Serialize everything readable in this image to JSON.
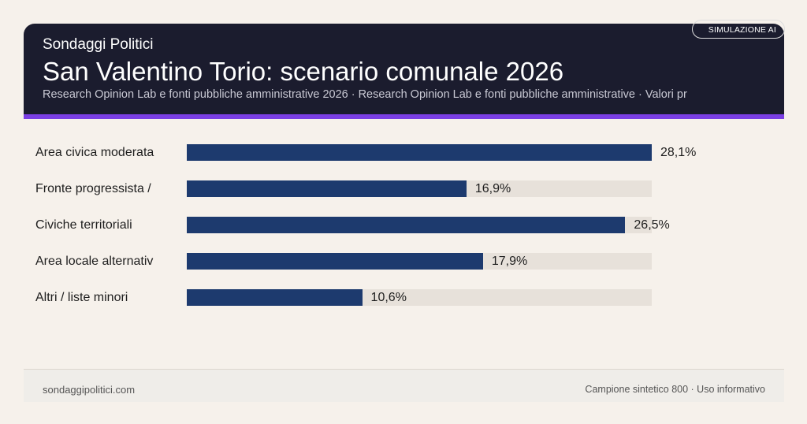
{
  "header": {
    "kicker": "Sondaggi Politici",
    "title": "San Valentino Torio: scenario comunale 2026",
    "subtitle": "Research Opinion Lab e fonti pubbliche amministrative 2026 · Research Opinion Lab e fonti pubbliche amministrative · Valori pr",
    "badge": "SIMULAZIONE AI"
  },
  "colors": {
    "bar": "#1d3a6e",
    "track": "#e7e1da",
    "accent": "#7b3fe4",
    "header_bg": "#1b1c2e"
  },
  "chart_data": {
    "type": "bar",
    "orientation": "horizontal",
    "categories": [
      "Area civica moderata",
      "Fronte progressista /",
      "Civiche territoriali",
      "Area locale alternativ",
      "Altri / liste minori"
    ],
    "values": [
      28.1,
      16.9,
      26.5,
      17.9,
      10.6
    ],
    "labels": [
      "28,1%",
      "16,9%",
      "26,5%",
      "17,9%",
      "10,6%"
    ],
    "unit": "%",
    "xlim": [
      0,
      28.1
    ],
    "grid": false
  },
  "footer": {
    "left": "sondaggipolitici.com",
    "right": "Campione sintetico 800 · Uso informativo"
  }
}
